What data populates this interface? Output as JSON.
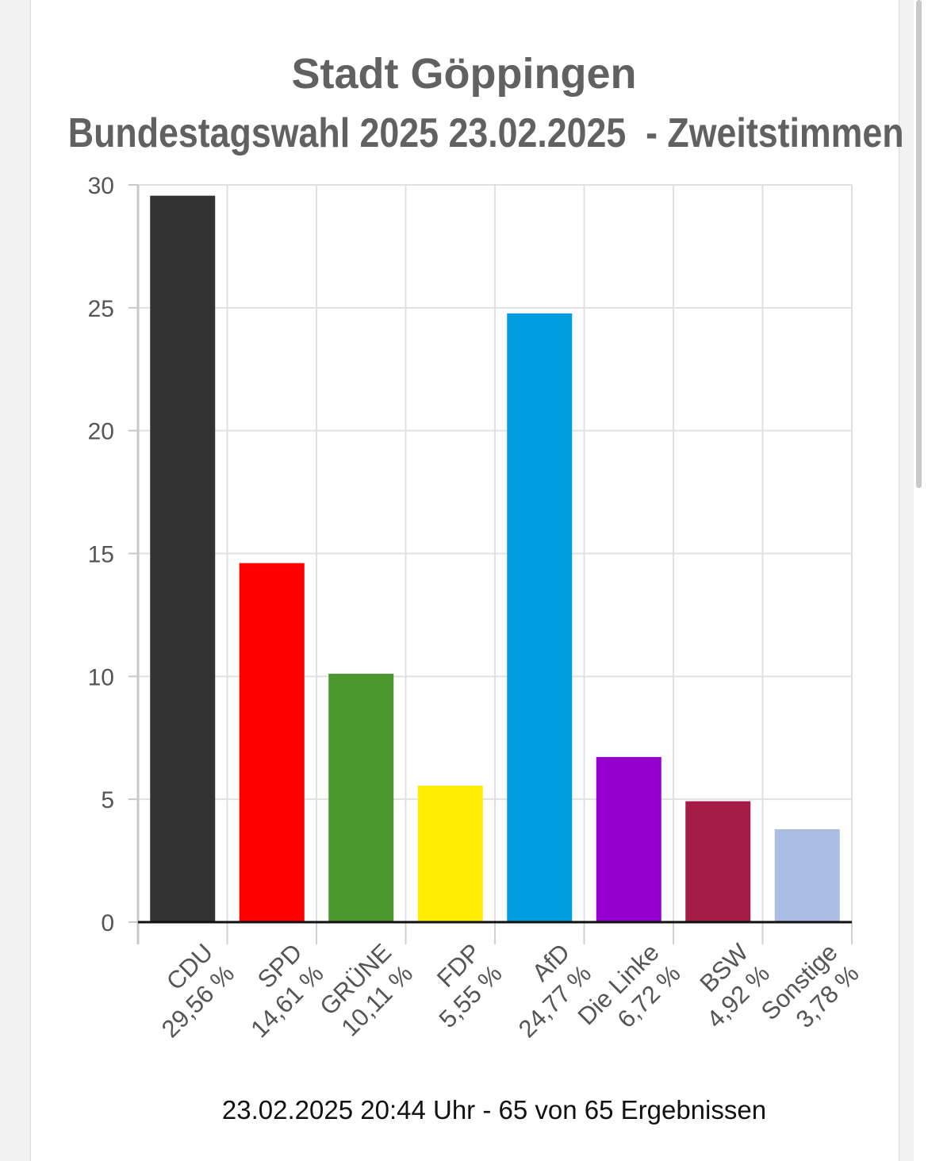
{
  "chart_data": {
    "type": "bar",
    "title": "Stadt Göppingen",
    "subtitle": "Bundestagswahl 2025 23.02.2025  - Zweitstimmen",
    "categories": [
      "CDU",
      "SPD",
      "GRÜNE",
      "FDP",
      "AfD",
      "Die Linke",
      "BSW",
      "Sonstige"
    ],
    "value_labels": [
      "29,56 %",
      "14,61 %",
      "10,11 %",
      "5,55 %",
      "24,77 %",
      "6,72 %",
      "4,92 %",
      "3,78 %"
    ],
    "values": [
      29.56,
      14.61,
      10.11,
      5.55,
      24.77,
      6.72,
      4.92,
      3.78
    ],
    "colors": [
      "#323232",
      "#ff0000",
      "#4b962d",
      "#ffec00",
      "#009ee0",
      "#9400cf",
      "#a31d48",
      "#aabde3"
    ],
    "ylim": [
      0,
      30
    ],
    "yticks": [
      0,
      5,
      10,
      15,
      20,
      25,
      30
    ],
    "xlabel": "",
    "ylabel": "",
    "grid": true,
    "legend": "none"
  },
  "footer": "23.02.2025 20:44 Uhr - 65 von 65 Ergebnissen"
}
